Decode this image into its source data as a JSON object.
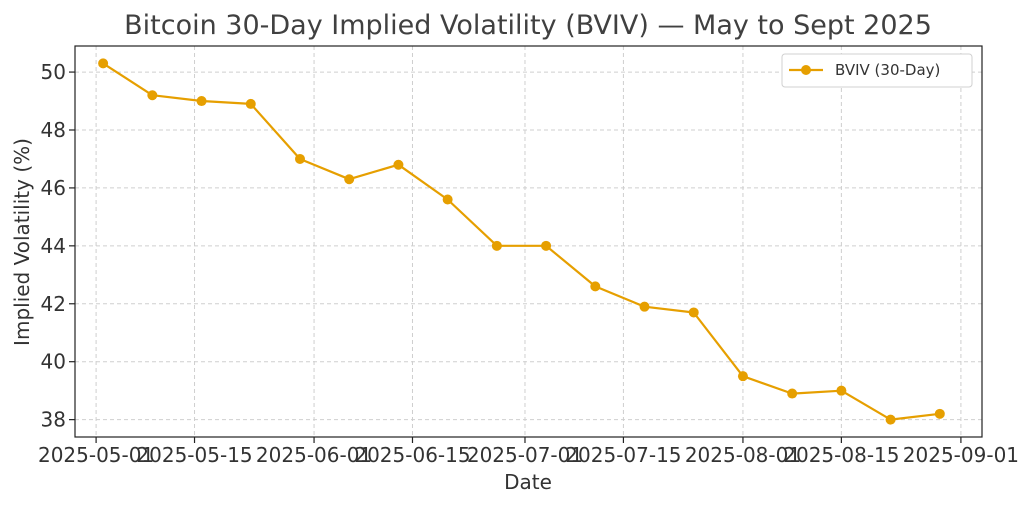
{
  "chart_data": {
    "type": "line",
    "title": "Bitcoin 30-Day Implied Volatility (BVIV) — May to Sept 2025",
    "xlabel": "Date",
    "ylabel": "Implied Volatility (%)",
    "x_tick_labels": [
      "2025-05-01",
      "2025-05-15",
      "2025-06-01",
      "2025-06-15",
      "2025-07-01",
      "2025-07-15",
      "2025-08-01",
      "2025-08-15",
      "2025-09-01"
    ],
    "y_ticks": [
      38,
      40,
      42,
      44,
      46,
      48,
      50
    ],
    "xlim": [
      "2025-04-28",
      "2025-09-04"
    ],
    "ylim": [
      37.4,
      50.9
    ],
    "grid": true,
    "legend_position": "top-right",
    "series": [
      {
        "name": "BVIV (30-Day)",
        "color": "#E69F00",
        "marker": "circle",
        "x": [
          "2025-05-02",
          "2025-05-09",
          "2025-05-16",
          "2025-05-23",
          "2025-05-30",
          "2025-06-06",
          "2025-06-13",
          "2025-06-20",
          "2025-06-27",
          "2025-07-04",
          "2025-07-11",
          "2025-07-18",
          "2025-07-25",
          "2025-08-01",
          "2025-08-08",
          "2025-08-15",
          "2025-08-22",
          "2025-08-29"
        ],
        "values": [
          50.3,
          49.2,
          49.0,
          48.9,
          47.0,
          46.3,
          46.8,
          45.6,
          44.0,
          44.0,
          42.6,
          41.9,
          41.7,
          39.5,
          38.9,
          39.0,
          38.0,
          38.2
        ]
      }
    ]
  }
}
